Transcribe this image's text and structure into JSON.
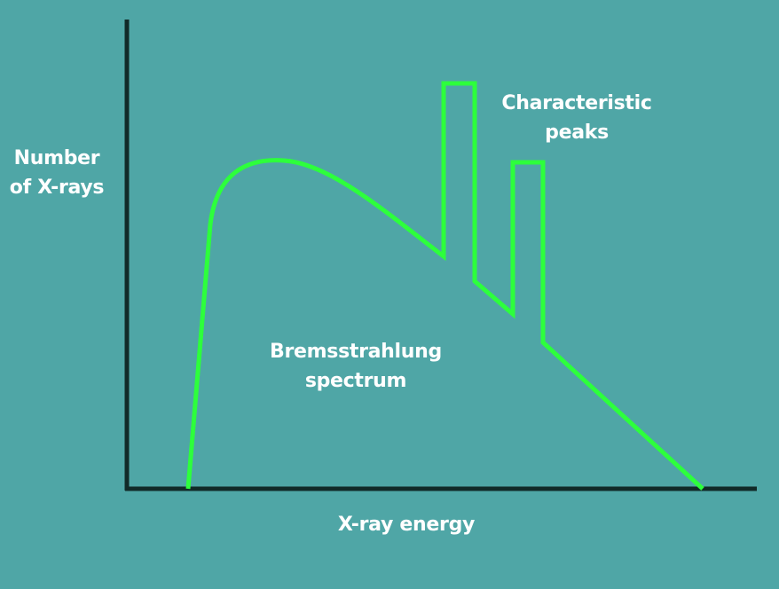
{
  "colors": {
    "background": "#4fa6a6",
    "axes": "#112a28",
    "curve": "#2dff3c",
    "text": "#ffffff"
  },
  "labels": {
    "y_axis_line1": "Number",
    "y_axis_line2": "of X-rays",
    "x_axis": "X-ray energy",
    "peaks_line1": "Characteristic",
    "peaks_line2": "peaks",
    "continuum_line1": "Bremsstrahlung",
    "continuum_line2": "spectrum"
  }
}
